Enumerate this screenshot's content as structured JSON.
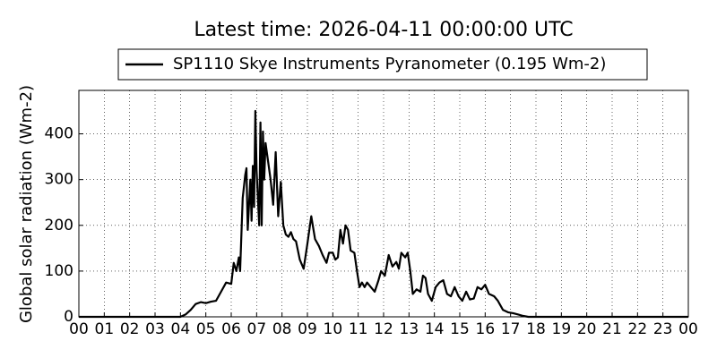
{
  "chart_data": {
    "type": "line",
    "title": "Latest time: 2026-04-11 00:00:00 UTC",
    "y_label": "Global solar radiation (Wm-2)",
    "xlim": [
      0,
      24
    ],
    "ylim": [
      0,
      495
    ],
    "xticks": [
      {
        "value": 0,
        "label": "00"
      },
      {
        "value": 1,
        "label": "01"
      },
      {
        "value": 2,
        "label": "02"
      },
      {
        "value": 3,
        "label": "03"
      },
      {
        "value": 4,
        "label": "04"
      },
      {
        "value": 5,
        "label": "05"
      },
      {
        "value": 6,
        "label": "06"
      },
      {
        "value": 7,
        "label": "07"
      },
      {
        "value": 8,
        "label": "08"
      },
      {
        "value": 9,
        "label": "09"
      },
      {
        "value": 10,
        "label": "10"
      },
      {
        "value": 11,
        "label": "11"
      },
      {
        "value": 12,
        "label": "12"
      },
      {
        "value": 13,
        "label": "13"
      },
      {
        "value": 14,
        "label": "14"
      },
      {
        "value": 15,
        "label": "15"
      },
      {
        "value": 16,
        "label": "16"
      },
      {
        "value": 17,
        "label": "17"
      },
      {
        "value": 18,
        "label": "18"
      },
      {
        "value": 19,
        "label": "19"
      },
      {
        "value": 20,
        "label": "20"
      },
      {
        "value": 21,
        "label": "21"
      },
      {
        "value": 22,
        "label": "22"
      },
      {
        "value": 23,
        "label": "23"
      },
      {
        "value": 24,
        "label": "00"
      }
    ],
    "yticks": [
      0,
      100,
      200,
      300,
      400
    ],
    "grid": true,
    "legend": "top",
    "x": [
      0,
      4.0,
      4.2,
      4.4,
      4.6,
      4.8,
      5.0,
      5.2,
      5.4,
      5.6,
      5.8,
      6.0,
      6.1,
      6.2,
      6.3,
      6.35,
      6.45,
      6.55,
      6.6,
      6.65,
      6.75,
      6.8,
      6.85,
      6.9,
      6.95,
      7.0,
      7.1,
      7.15,
      7.2,
      7.25,
      7.3,
      7.35,
      7.45,
      7.55,
      7.65,
      7.75,
      7.85,
      7.95,
      8.05,
      8.15,
      8.25,
      8.35,
      8.45,
      8.55,
      8.7,
      8.85,
      9.0,
      9.15,
      9.3,
      9.45,
      9.6,
      9.75,
      9.85,
      10.0,
      10.1,
      10.2,
      10.3,
      10.4,
      10.5,
      10.6,
      10.7,
      10.85,
      10.95,
      11.05,
      11.15,
      11.25,
      11.35,
      11.5,
      11.65,
      11.8,
      11.9,
      12.05,
      12.2,
      12.35,
      12.5,
      12.6,
      12.7,
      12.85,
      12.95,
      13.05,
      13.15,
      13.3,
      13.45,
      13.55,
      13.65,
      13.75,
      13.9,
      14.05,
      14.2,
      14.35,
      14.5,
      14.65,
      14.8,
      14.95,
      15.1,
      15.25,
      15.4,
      15.55,
      15.7,
      15.85,
      16.0,
      16.15,
      16.35,
      16.5,
      16.7,
      16.9,
      17.1,
      17.3,
      17.5,
      17.7,
      24
    ],
    "series": [
      {
        "name": "SP1110 Skye Instruments Pyranometer (0.195 Wm-2)",
        "color": "#000000",
        "values": [
          0,
          0,
          5,
          15,
          28,
          32,
          30,
          33,
          35,
          55,
          75,
          72,
          118,
          100,
          130,
          100,
          260,
          310,
          325,
          190,
          300,
          210,
          330,
          240,
          450,
          320,
          200,
          425,
          200,
          405,
          300,
          380,
          340,
          300,
          245,
          360,
          220,
          295,
          200,
          180,
          175,
          185,
          170,
          165,
          125,
          105,
          160,
          220,
          170,
          155,
          135,
          118,
          140,
          140,
          125,
          130,
          190,
          160,
          200,
          190,
          145,
          140,
          100,
          65,
          75,
          65,
          75,
          65,
          55,
          80,
          100,
          90,
          135,
          110,
          120,
          105,
          140,
          130,
          140,
          100,
          50,
          60,
          55,
          90,
          85,
          50,
          35,
          65,
          75,
          80,
          50,
          45,
          65,
          45,
          35,
          55,
          38,
          40,
          65,
          60,
          70,
          50,
          45,
          35,
          15,
          10,
          8,
          5,
          2,
          0,
          0
        ]
      }
    ]
  }
}
